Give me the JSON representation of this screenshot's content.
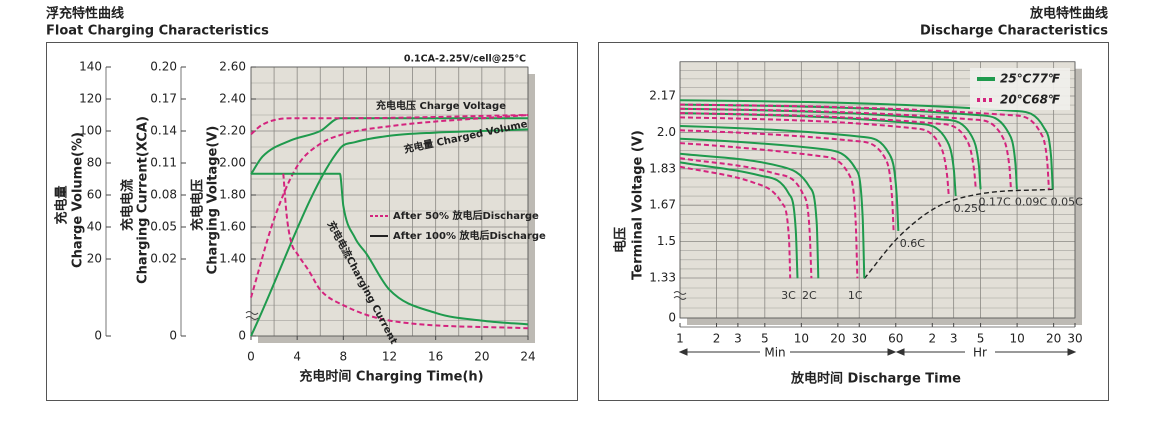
{
  "chart_data": [
    {
      "type": "line",
      "title": "浮充特性曲线",
      "subtitle": "Float Charging Characteristics",
      "annotation": "0.1CA-2.25V/cell@25℃",
      "xlabel": "充电时间 Charging Time(h)",
      "xlim": [
        0,
        24
      ],
      "xticks": [
        0,
        4,
        8,
        12,
        16,
        20,
        24
      ],
      "grid": true,
      "axes": [
        {
          "label": [
            "充电量",
            "Charge Volume(%)"
          ],
          "ylim": [
            0,
            140
          ],
          "yticks": [
            0,
            20,
            40,
            60,
            80,
            100,
            120,
            140
          ]
        },
        {
          "label": [
            "充电电流",
            "Charging Current(XCA)"
          ],
          "ylim": [
            0,
            0.2
          ],
          "yticks": [
            0,
            0.02,
            0.05,
            0.08,
            0.11,
            0.14,
            0.17,
            {
              "value": 0.2,
              "label": "0.20"
            }
          ]
        },
        {
          "label": [
            "充电电压",
            "Charging Voltage(V)"
          ],
          "ylim": [
            0,
            2.6
          ],
          "yticks": [
            0,
            {
              "value": 1.4,
              "label": "1.40"
            },
            {
              "value": 1.6,
              "label": "1.60"
            },
            {
              "value": 1.8,
              "label": "1.80"
            },
            {
              "value": 2,
              "label": "2.00"
            },
            {
              "value": 2.2,
              "label": "2.20"
            },
            {
              "value": 2.4,
              "label": "2.40"
            },
            {
              "value": 2.6,
              "label": "2.60"
            }
          ]
        }
      ],
      "legend": [
        {
          "label": "After 50% 放电后Discharge",
          "color": "#d4247e",
          "dash": true
        },
        {
          "label": "After 100% 放电后Discharge",
          "color": "#222222",
          "dash": false
        }
      ],
      "curves": [
        {
          "axis": 2,
          "color": "#1f9a4d",
          "dash": false,
          "x": [
            0,
            1,
            3.4,
            6,
            7.7,
            24
          ],
          "values": [
            1.93,
            2.04,
            2.14,
            2.2,
            2.28,
            2.28
          ]
        },
        {
          "axis": 2,
          "color": "#d4247e",
          "dash": true,
          "x": [
            0,
            1,
            3.5,
            8,
            24
          ],
          "values": [
            2.18,
            2.24,
            2.28,
            2.28,
            2.3
          ]
        },
        {
          "axis": 0,
          "color": "#1f9a4d",
          "dash": false,
          "x": [
            0,
            7.7,
            9,
            12,
            16,
            20,
            24
          ],
          "values": [
            0,
            89,
            93,
            97,
            99,
            100,
            101
          ]
        },
        {
          "axis": 0,
          "color": "#d4247e",
          "dash": true,
          "x": [
            0,
            2,
            4,
            6,
            8,
            12,
            24
          ],
          "values": [
            10,
            45,
            78,
            92,
            98,
            103,
            110
          ]
        },
        {
          "axis": 1,
          "color": "#1f9a4d",
          "dash": false,
          "x": [
            0,
            7.7,
            8,
            9,
            10,
            12,
            16,
            20,
            24
          ],
          "values": [
            0.1,
            0.1,
            0.07,
            0.04,
            0.025,
            0.012,
            0.006,
            0.004,
            0.003
          ]
        },
        {
          "axis": 1,
          "color": "#d4247e",
          "dash": true,
          "x": [
            2.8,
            3.1,
            3.5,
            4,
            5,
            6,
            8,
            12,
            24
          ],
          "values": [
            0.1,
            0.06,
            0.035,
            0.025,
            0.017,
            0.012,
            0.008,
            0.004,
            0.002
          ]
        }
      ],
      "curve_labels": [
        "充电电压 Charge Voltage",
        "充电量 Charged Volume",
        "充电电流Charging Current"
      ]
    },
    {
      "type": "line",
      "title": "放电特性曲线",
      "subtitle": "Discharge Characteristics",
      "xlabel": "放电时间 Discharge Time",
      "ylabel": [
        "电压",
        "Terminal Voltage (V)"
      ],
      "log_x": true,
      "xlim": [
        1,
        1800
      ],
      "xticks": [
        1,
        2,
        3,
        5,
        10,
        20,
        30,
        60,
        {
          "value": 120,
          "label": "2"
        },
        {
          "value": 180,
          "label": "3"
        },
        {
          "value": 300,
          "label": "5"
        },
        {
          "value": 600,
          "label": "10"
        },
        {
          "value": 1200,
          "label": "20"
        },
        {
          "value": 1800,
          "label": "30"
        }
      ],
      "x_units": [
        "Min",
        "Hr"
      ],
      "ylim": [
        0,
        2.33
      ],
      "yticks": [
        0,
        1.33,
        1.5,
        1.67,
        1.83,
        {
          "value": 2,
          "label": "2.0"
        },
        2.17
      ],
      "grid": true,
      "legend_position": "top-right",
      "series": [
        {
          "name": "25℃77℉",
          "color": "#1f9a4d",
          "dash": false,
          "curves": [
            {
              "label": "3C",
              "x": [
                1,
                4.6,
                7.9,
                9.0,
                9.3
              ],
              "values": [
                1.86,
                1.8,
                1.72,
                1.55,
                1.32
              ]
            },
            {
              "label": "2C",
              "x": [
                1,
                6.9,
                11.7,
                13.4,
                13.8
              ],
              "values": [
                1.9,
                1.84,
                1.75,
                1.58,
                1.32
              ]
            },
            {
              "label": "1C",
              "x": [
                1,
                16,
                28,
                32,
                33
              ],
              "values": [
                1.97,
                1.92,
                1.83,
                1.62,
                1.32
              ]
            },
            {
              "label": "0.6C",
              "x": [
                1,
                31,
                53,
                61,
                63
              ],
              "values": [
                2.03,
                1.98,
                1.9,
                1.72,
                1.55
              ]
            },
            {
              "label": "0.25C",
              "x": [
                1,
                93,
                159,
                181,
                187
              ],
              "values": [
                2.09,
                2.04,
                1.96,
                1.82,
                1.71
              ]
            },
            {
              "label": "0.17C",
              "x": [
                1,
                150,
                255,
                291,
                300
              ],
              "values": [
                2.11,
                2.06,
                1.98,
                1.84,
                1.74
              ]
            },
            {
              "label": "0.09C",
              "x": [
                1,
                299,
                508,
                580,
                598
              ],
              "values": [
                2.13,
                2.08,
                2.0,
                1.86,
                1.74
              ]
            },
            {
              "label": "0.05C",
              "x": [
                1,
                590,
                1003,
                1145,
                1180
              ],
              "values": [
                2.15,
                2.1,
                2.02,
                1.88,
                1.74
              ]
            }
          ]
        },
        {
          "name": "20℃68℉",
          "color": "#d4247e",
          "dash": true,
          "curves": [
            {
              "x": [
                1,
                4.0,
                6.9,
                7.9,
                8.1
              ],
              "values": [
                1.84,
                1.77,
                1.68,
                1.52,
                1.32
              ]
            },
            {
              "x": [
                1,
                6.0,
                10.3,
                11.7,
                12.1
              ],
              "values": [
                1.88,
                1.81,
                1.72,
                1.55,
                1.32
              ]
            },
            {
              "x": [
                1,
                14,
                25,
                28,
                29
              ],
              "values": [
                1.95,
                1.89,
                1.8,
                1.6,
                1.32
              ]
            },
            {
              "x": [
                1,
                28,
                49,
                56,
                57.6
              ],
              "values": [
                2.01,
                1.96,
                1.88,
                1.7,
                1.55
              ]
            },
            {
              "x": [
                1,
                82,
                139,
                159,
                164
              ],
              "values": [
                2.07,
                2.02,
                1.94,
                1.8,
                1.71
              ]
            },
            {
              "x": [
                1,
                137,
                233,
                266,
                274
              ],
              "values": [
                2.09,
                2.04,
                1.96,
                1.82,
                1.74
              ]
            },
            {
              "x": [
                1,
                267,
                454,
                518,
                534
              ],
              "values": [
                2.11,
                2.06,
                1.98,
                1.84,
                1.74
              ]
            },
            {
              "x": [
                1,
                548,
                932,
                1064,
                1097
              ],
              "values": [
                2.13,
                2.08,
                2.0,
                1.86,
                1.74
              ]
            }
          ]
        }
      ],
      "end_line": {
        "color": "#222222",
        "dash": true,
        "x": [
          33,
          63,
          130,
          300,
          1200
        ],
        "values": [
          1.31,
          1.52,
          1.66,
          1.72,
          1.74
        ]
      }
    }
  ]
}
